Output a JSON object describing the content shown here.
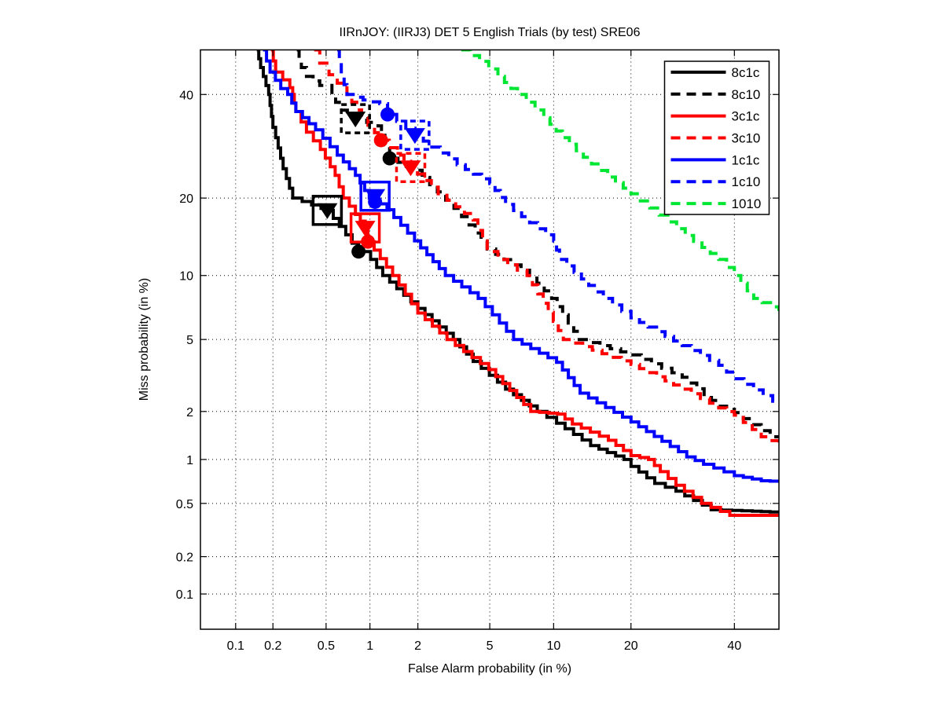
{
  "title": "IIRnJOY: (IIRJ3) DET 5 English Trials (by test) SRE06",
  "axes": {
    "x_label": "False Alarm probability (in %)",
    "y_label": "Miss probability (in %)",
    "x_ticks": [
      "0.1",
      "0.2",
      "0.5",
      "1",
      "2",
      "5",
      "10",
      "20",
      "40"
    ],
    "y_ticks": [
      "0.1",
      "0.2",
      "0.5",
      "1",
      "2",
      "5",
      "10",
      "20",
      "40"
    ],
    "axis_min_percent": 0.05,
    "axis_max_percent": 50,
    "scale": "probit",
    "grid": "dotted"
  },
  "legend": {
    "position": "top-right",
    "entries": [
      {
        "label": "8c1c",
        "color": "#000000",
        "dash": "solid"
      },
      {
        "label": "8c10",
        "color": "#000000",
        "dash": "dashed"
      },
      {
        "label": "3c1c",
        "color": "#ff0000",
        "dash": "solid"
      },
      {
        "label": "3c10",
        "color": "#ff0000",
        "dash": "dashed"
      },
      {
        "label": "1c1c",
        "color": "#0000ff",
        "dash": "solid"
      },
      {
        "label": "1c10",
        "color": "#0000ff",
        "dash": "dashed"
      },
      {
        "label": "1010",
        "color": "#00e633",
        "dash": "dashed"
      }
    ]
  },
  "chart_data": {
    "type": "line",
    "subtype": "DET-curve-staircase",
    "title": "IIRnJOY: (IIRJ3) DET 5 English Trials (by test) SRE06",
    "xlabel": "False Alarm probability (in %)",
    "ylabel": "Miss probability (in %)",
    "xlim": [
      0.05,
      50
    ],
    "ylim": [
      0.05,
      50
    ],
    "x_scale": "probit",
    "y_scale": "probit",
    "grid": "dotted",
    "legend_position": "upper right",
    "units": "percent",
    "series": [
      {
        "name": "8c1c",
        "color": "#000000",
        "style": "solid",
        "points": [
          [
            0.149,
            50
          ],
          [
            0.16,
            46
          ],
          [
            0.185,
            40
          ],
          [
            0.2,
            33
          ],
          [
            0.21,
            30.9
          ],
          [
            0.24,
            25
          ],
          [
            0.284,
            20
          ],
          [
            0.46,
            18.4
          ],
          [
            0.51,
            18.1
          ],
          [
            0.62,
            15.8
          ],
          [
            0.84,
            12.6
          ],
          [
            1.01,
            11.7
          ],
          [
            1.21,
            10
          ],
          [
            2.0,
            7.1
          ],
          [
            3.2,
            5.0
          ],
          [
            4.1,
            3.84
          ],
          [
            6.0,
            2.7
          ],
          [
            8.46,
            2.0
          ],
          [
            10.3,
            1.7
          ],
          [
            14.2,
            1.23
          ],
          [
            18.9,
            1.0
          ],
          [
            20,
            0.9
          ],
          [
            24,
            0.69
          ],
          [
            27.9,
            0.61
          ],
          [
            35,
            0.45
          ],
          [
            44,
            0.44
          ],
          [
            50,
            0.43
          ]
        ],
        "markers": {
          "square_triangle": [
            0.51,
            18.1
          ],
          "circle": [
            0.84,
            12.6
          ]
        }
      },
      {
        "name": "8c10",
        "color": "#000000",
        "style": "dashed",
        "points": [
          [
            0.305,
            50
          ],
          [
            0.33,
            46
          ],
          [
            0.36,
            44
          ],
          [
            0.45,
            42
          ],
          [
            0.55,
            40
          ],
          [
            0.62,
            36.6
          ],
          [
            0.8,
            34.8
          ],
          [
            1.13,
            33.3
          ],
          [
            1.25,
            29.5
          ],
          [
            1.34,
            26.9
          ],
          [
            1.91,
            24.7
          ],
          [
            2.6,
            21
          ],
          [
            3.23,
            18.4
          ],
          [
            3.9,
            16.0
          ],
          [
            4.85,
            12.9
          ],
          [
            7.8,
            10
          ],
          [
            9.8,
            7.9
          ],
          [
            12.8,
            5.0
          ],
          [
            20,
            4.16
          ],
          [
            29.1,
            3.15
          ],
          [
            36.6,
            2.15
          ],
          [
            40,
            1.97
          ],
          [
            48,
            1.4
          ],
          [
            50,
            1.38
          ]
        ],
        "markers": {
          "square_triangle": [
            0.8,
            34.8
          ],
          "circle": [
            1.34,
            26.9
          ]
        }
      },
      {
        "name": "3c1c",
        "color": "#ff0000",
        "style": "solid",
        "points": [
          [
            0.193,
            50
          ],
          [
            0.21,
            45
          ],
          [
            0.27,
            41.5
          ],
          [
            0.284,
            40
          ],
          [
            0.3,
            36.3
          ],
          [
            0.36,
            32
          ],
          [
            0.455,
            28.6
          ],
          [
            0.58,
            23.8
          ],
          [
            0.66,
            20
          ],
          [
            0.8,
            17.5
          ],
          [
            0.93,
            15.6
          ],
          [
            0.97,
            13.8
          ],
          [
            1.4,
            10
          ],
          [
            2.0,
            6.75
          ],
          [
            2.95,
            5.0
          ],
          [
            4.94,
            3.47
          ],
          [
            7.9,
            2.0
          ],
          [
            10.4,
            1.93
          ],
          [
            12.0,
            1.68
          ],
          [
            16.6,
            1.33
          ],
          [
            20,
            1.06
          ],
          [
            22.9,
            1.0
          ],
          [
            25,
            0.83
          ],
          [
            27.9,
            0.67
          ],
          [
            33,
            0.5
          ],
          [
            39,
            0.41
          ],
          [
            50,
            0.41
          ]
        ],
        "markers": {
          "square_triangle": [
            0.93,
            15.6
          ],
          "circle": [
            0.97,
            13.8
          ]
        }
      },
      {
        "name": "3c10",
        "color": "#ff0000",
        "style": "dashed",
        "points": [
          [
            0.41,
            50
          ],
          [
            0.45,
            47
          ],
          [
            0.525,
            44.4
          ],
          [
            0.6,
            42.5
          ],
          [
            0.7,
            40
          ],
          [
            0.88,
            35
          ],
          [
            1.18,
            30.4
          ],
          [
            1.5,
            27.5
          ],
          [
            1.81,
            25.2
          ],
          [
            2.63,
            20.7
          ],
          [
            4.1,
            16.7
          ],
          [
            4.85,
            12.6
          ],
          [
            5.5,
            11.7
          ],
          [
            7.6,
            10
          ],
          [
            9.0,
            7.5
          ],
          [
            11,
            5.0
          ],
          [
            20,
            3.7
          ],
          [
            29.1,
            2.7
          ],
          [
            36.6,
            2.1
          ],
          [
            40,
            1.9
          ],
          [
            46,
            1.4
          ],
          [
            50,
            1.25
          ]
        ],
        "markers": {
          "square_triangle": [
            1.81,
            25.2
          ],
          "circle": [
            1.18,
            30.4
          ]
        }
      },
      {
        "name": "1c1c",
        "color": "#0000ff",
        "style": "solid",
        "points": [
          [
            0.167,
            50
          ],
          [
            0.19,
            45
          ],
          [
            0.23,
            41.3
          ],
          [
            0.26,
            40
          ],
          [
            0.3,
            36.3
          ],
          [
            0.42,
            32.5
          ],
          [
            0.6,
            27.5
          ],
          [
            0.8,
            23.8
          ],
          [
            0.99,
            20
          ],
          [
            1.29,
            18.2
          ],
          [
            1.91,
            13.9
          ],
          [
            2.89,
            10
          ],
          [
            4.36,
            7.9
          ],
          [
            6.56,
            5.0
          ],
          [
            10.3,
            3.8
          ],
          [
            12.9,
            2.56
          ],
          [
            20,
            1.73
          ],
          [
            25.3,
            1.31
          ],
          [
            30,
            1.04
          ],
          [
            33.4,
            0.93
          ],
          [
            40,
            0.78
          ],
          [
            46,
            0.72
          ],
          [
            50,
            0.71
          ]
        ],
        "markers": {
          "square_triangle": [
            1.08,
            20.3
          ],
          "circle": [
            1.08,
            19.4
          ]
        }
      },
      {
        "name": "1c10",
        "color": "#0000ff",
        "style": "dashed",
        "points": [
          [
            0.6,
            50
          ],
          [
            0.64,
            44.4
          ],
          [
            0.7,
            40
          ],
          [
            0.9,
            38.8
          ],
          [
            1.16,
            38
          ],
          [
            1.3,
            35.7
          ],
          [
            1.92,
            31.4
          ],
          [
            3.36,
            25.7
          ],
          [
            5.0,
            22.4
          ],
          [
            6.0,
            19.0
          ],
          [
            10.0,
            13.9
          ],
          [
            10.6,
            11.7
          ],
          [
            15.9,
            7.9
          ],
          [
            20,
            6.4
          ],
          [
            29.1,
            4.65
          ],
          [
            36.6,
            3.66
          ],
          [
            40,
            3.09
          ],
          [
            48.6,
            2.3
          ],
          [
            50,
            2.25
          ]
        ],
        "markers": {
          "square_triangle": [
            1.92,
            31.4
          ],
          "circle": [
            1.3,
            35.7
          ]
        }
      },
      {
        "name": "1010",
        "color": "#00e633",
        "style": "dashed",
        "points": [
          [
            3.54,
            50
          ],
          [
            4.43,
            47.4
          ],
          [
            5.5,
            44
          ],
          [
            6.85,
            40
          ],
          [
            9.05,
            35
          ],
          [
            10.9,
            30.9
          ],
          [
            13.3,
            27.1
          ],
          [
            16.5,
            23.5
          ],
          [
            20,
            20.7
          ],
          [
            24.8,
            17.4
          ],
          [
            29.7,
            14.6
          ],
          [
            36.6,
            11.7
          ],
          [
            40,
            10
          ],
          [
            44.3,
            7.9
          ],
          [
            50,
            6.9
          ]
        ],
        "markers": {}
      }
    ]
  }
}
